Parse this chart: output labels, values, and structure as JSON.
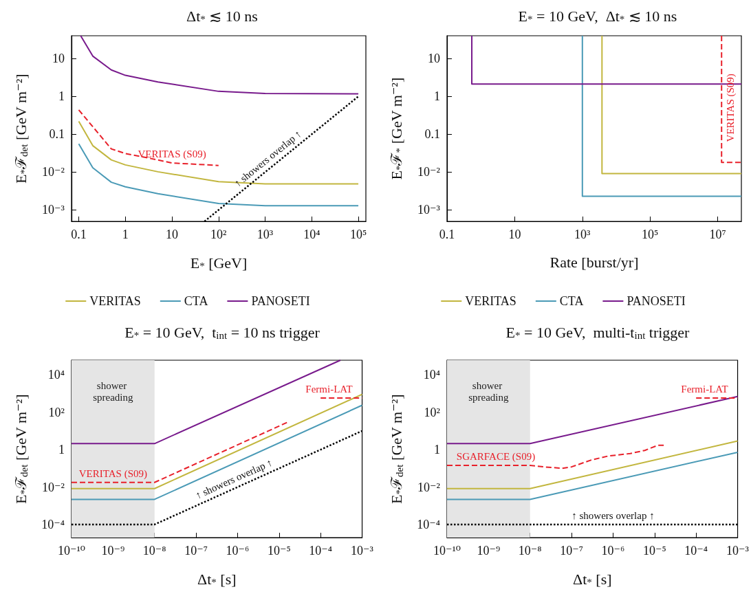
{
  "chart_data": [
    {
      "type": "line",
      "title": "Δt$_{*}$ ≲ 10 ns",
      "xlabel": "E$_{*}$ [GeV]",
      "ylabel": "E$_{*}$ℱ$_{det}$ [GeV m⁻²]",
      "log": "xy",
      "grid": false,
      "legend": "bottom",
      "marker": "none",
      "xlim": [
        0.07,
        145000
      ],
      "ylim": [
        0.0005,
        40
      ],
      "xticks": [
        0.1,
        1,
        10,
        {
          "value": 100,
          "label": "10²"
        },
        {
          "value": 1000,
          "label": "10³"
        },
        {
          "value": 10000,
          "label": "10⁴"
        },
        {
          "value": 100000,
          "label": "10⁵"
        }
      ],
      "yticks": [
        {
          "value": 0.001,
          "label": "10⁻³"
        },
        {
          "value": 0.01,
          "label": "10⁻²"
        },
        0.1,
        1,
        10
      ],
      "series": [
        {
          "name": "VERITAS",
          "color": "#c2b63e",
          "x": [
            0.1,
            0.2,
            0.5,
            1,
            5,
            100,
            1000,
            100000
          ],
          "values": [
            0.22,
            0.05,
            0.021,
            0.0155,
            0.0102,
            0.0056,
            0.0049,
            0.0049
          ]
        },
        {
          "name": "CTA",
          "color": "#4a9ab6",
          "x": [
            0.1,
            0.2,
            0.5,
            1,
            5,
            100,
            1000,
            100000
          ],
          "values": [
            0.056,
            0.013,
            0.0054,
            0.0041,
            0.0027,
            0.00148,
            0.0013,
            0.0013
          ]
        },
        {
          "name": "PANOSETI",
          "color": "#781a8c",
          "x": [
            0.11,
            0.2,
            0.5,
            1,
            5,
            100,
            1000,
            100000
          ],
          "values": [
            40,
            11.6,
            5.0,
            3.6,
            2.4,
            1.36,
            1.19,
            1.17
          ]
        },
        {
          "color": "#e8202a",
          "line_style": "dashed",
          "x": [
            0.1,
            0.5,
            1,
            5,
            10,
            100
          ],
          "values": [
            0.44,
            0.041,
            0.031,
            0.021,
            0.0174,
            0.015
          ]
        },
        {
          "color": "#000000",
          "line_style": "dotted",
          "x": [
            50,
            100000
          ],
          "values": [
            0.0005,
            1
          ]
        }
      ],
      "annotations": [
        {
          "text": "VERITAS (S09)",
          "x": 10,
          "y": 0.0174
        },
        {
          "text": "↑ showers overlap ↑",
          "x": 1500,
          "y": 0.015
        }
      ]
    },
    {
      "type": "line",
      "title": "E$_{*}$ = 10 GeV,  Δt$_{*}$ ≲ 10 ns",
      "xlabel": "Rate [burst/yr]",
      "ylabel": "E$_{*}$ℱ$_{*}$ [GeV m⁻²]",
      "log": "xy",
      "grid": false,
      "legend": "bottom",
      "marker": "none",
      "xlim": [
        0.1,
        50000000
      ],
      "ylim": [
        0.0005,
        40
      ],
      "xticks": [
        0.1,
        10,
        {
          "value": 1000,
          "label": "10³"
        },
        {
          "value": 100000,
          "label": "10⁵"
        },
        {
          "value": 10000000,
          "label": "10⁷"
        }
      ],
      "yticks": [
        {
          "value": 0.001,
          "label": "10⁻³"
        },
        {
          "value": 0.01,
          "label": "10⁻²"
        },
        0.1,
        1,
        10
      ],
      "series": [
        {
          "name": "VERITAS",
          "color": "#c2b63e",
          "x": [
            3800,
            3800,
            50000000
          ],
          "values": [
            40,
            0.0091,
            0.0091
          ]
        },
        {
          "name": "CTA",
          "color": "#4a9ab6",
          "x": [
            1000,
            1000,
            50000000
          ],
          "values": [
            40,
            0.0023,
            0.0023
          ]
        },
        {
          "name": "PANOSETI",
          "color": "#781a8c",
          "x": [
            0.54,
            0.54,
            50000000
          ],
          "values": [
            40,
            2.13,
            2.13
          ]
        },
        {
          "color": "#e8202a",
          "line_style": "dashed",
          "x": [
            13000000,
            13000000,
            50000000
          ],
          "values": [
            40,
            0.018,
            0.018
          ]
        }
      ],
      "annotations": [
        {
          "text": "VERITAS (S09)",
          "x": 13000000,
          "y": 0.5
        }
      ]
    },
    {
      "type": "line",
      "title": "E$_{*}$ = 10 GeV,  t$_{int}$ = 10 ns trigger",
      "xlabel": "Δt$_{*}$ [s]",
      "ylabel": "E$_{*}$ℱ$_{det}$ [GeV m⁻²]",
      "log": "xy",
      "grid": false,
      "marker": "none",
      "xlim": [
        1e-10,
        0.001
      ],
      "ylim": [
        2e-05,
        60000
      ],
      "xticks": [
        {
          "value": 1e-10,
          "label": "10⁻¹⁰"
        },
        {
          "value": 1e-09,
          "label": "10⁻⁹"
        },
        {
          "value": 1e-08,
          "label": "10⁻⁸"
        },
        {
          "value": 1e-07,
          "label": "10⁻⁷"
        },
        {
          "value": 1e-06,
          "label": "10⁻⁶"
        },
        {
          "value": 1e-05,
          "label": "10⁻⁵"
        },
        {
          "value": 0.0001,
          "label": "10⁻⁴"
        },
        {
          "value": 0.001,
          "label": "10⁻³"
        }
      ],
      "yticks": [
        {
          "value": 0.0001,
          "label": "10⁻⁴"
        },
        {
          "value": 0.001,
          "label": null
        },
        {
          "value": 0.01,
          "label": "10⁻²"
        },
        {
          "value": 0.1,
          "label": null
        },
        1,
        {
          "value": 10,
          "label": null
        },
        {
          "value": 100,
          "label": "10²"
        },
        {
          "value": 1000,
          "label": null
        },
        {
          "value": 10000,
          "label": "10⁴"
        }
      ],
      "bands": [
        {
          "axis": "x",
          "from": 1e-10,
          "to": 1e-08,
          "label": "shower spreading",
          "color": "#e5e5e5"
        }
      ],
      "series": [
        {
          "color": "#c2b63e",
          "x": [
            1e-10,
            1e-08,
            0.001
          ],
          "values": [
            0.0083,
            0.0083,
            900
          ]
        },
        {
          "color": "#4a9ab6",
          "x": [
            1e-10,
            1e-08,
            0.001
          ],
          "values": [
            0.0022,
            0.0022,
            235
          ]
        },
        {
          "color": "#781a8c",
          "x": [
            1e-10,
            1e-08,
            0.0003
          ],
          "values": [
            2.1,
            2.1,
            60000
          ]
        },
        {
          "color": "#e8202a",
          "line_style": "dashed",
          "x": [
            1e-10,
            1e-08,
            1.65e-05
          ],
          "values": [
            0.0177,
            0.0177,
            30
          ]
        },
        {
          "color": "#e8202a",
          "line_style": "dashed",
          "x": [
            0.0001,
            0.001
          ],
          "values": [
            575,
            575
          ]
        },
        {
          "color": "#000000",
          "line_style": "dotted",
          "x": [
            1e-10,
            1e-08,
            0.001
          ],
          "values": [
            0.0001,
            0.0001,
            10
          ]
        }
      ],
      "annotations": [
        {
          "text": "VERITAS (S09)",
          "x": 1e-09,
          "y": 0.0177
        },
        {
          "text": "Fermi-LAT",
          "x": 0.00016,
          "y": 575
        },
        {
          "text": "↑ showers overlap ↑",
          "x": 1e-06,
          "y": 0.01
        }
      ]
    },
    {
      "type": "line",
      "title": "E$_{*}$ = 10 GeV,  multi-t$_{int}$ trigger",
      "xlabel": "Δt$_{*}$ [s]",
      "ylabel": "E$_{*}$ℱ$_{det}$ [GeV m⁻²]",
      "log": "xy",
      "grid": false,
      "marker": "none",
      "xlim": [
        1e-10,
        0.001
      ],
      "ylim": [
        2e-05,
        60000
      ],
      "xticks": [
        {
          "value": 1e-10,
          "label": "10⁻¹⁰"
        },
        {
          "value": 1e-09,
          "label": "10⁻⁹"
        },
        {
          "value": 1e-08,
          "label": "10⁻⁸"
        },
        {
          "value": 1e-07,
          "label": "10⁻⁷"
        },
        {
          "value": 1e-06,
          "label": "10⁻⁶"
        },
        {
          "value": 1e-05,
          "label": "10⁻⁵"
        },
        {
          "value": 0.0001,
          "label": "10⁻⁴"
        },
        {
          "value": 0.001,
          "label": "10⁻³"
        }
      ],
      "yticks": [
        {
          "value": 0.0001,
          "label": "10⁻⁴"
        },
        {
          "value": 0.001,
          "label": null
        },
        {
          "value": 0.01,
          "label": "10⁻²"
        },
        {
          "value": 0.1,
          "label": null
        },
        1,
        {
          "value": 10,
          "label": null
        },
        {
          "value": 100,
          "label": "10²"
        },
        {
          "value": 1000,
          "label": null
        },
        {
          "value": 10000,
          "label": "10⁴"
        }
      ],
      "bands": [
        {
          "axis": "x",
          "from": 1e-10,
          "to": 1e-08,
          "label": "shower spreading",
          "color": "#e5e5e5"
        }
      ],
      "series": [
        {
          "color": "#c2b63e",
          "x": [
            1e-10,
            1e-08,
            0.001
          ],
          "values": [
            0.0083,
            0.0083,
            2.9
          ]
        },
        {
          "color": "#4a9ab6",
          "x": [
            1e-10,
            1e-08,
            0.001
          ],
          "values": [
            0.0022,
            0.0022,
            0.72
          ]
        },
        {
          "color": "#781a8c",
          "x": [
            1e-10,
            1e-08,
            0.001
          ],
          "values": [
            2.1,
            2.1,
            690
          ]
        },
        {
          "color": "#e8202a",
          "line_style": "dashed",
          "x": [
            1e-10,
            1e-08,
            2.1e-08,
            6e-08,
            1e-07,
            3e-07,
            7.8e-07,
            1.15e-06,
            2.6e-06,
            5.8e-06,
            1.2e-05,
            1.66e-05
          ],
          "values": [
            0.145,
            0.145,
            0.12,
            0.1,
            0.12,
            0.28,
            0.46,
            0.5,
            0.62,
            0.91,
            1.7,
            1.7
          ]
        },
        {
          "color": "#e8202a",
          "line_style": "dashed",
          "x": [
            0.0001,
            0.001
          ],
          "values": [
            575,
            575
          ]
        },
        {
          "color": "#000000",
          "line_style": "dotted",
          "x": [
            1e-10,
            0.001
          ],
          "values": [
            0.0001,
            0.0001
          ]
        }
      ],
      "annotations": [
        {
          "text": "SGARFACE (S09)",
          "x": 1.5e-09,
          "y": 0.145
        },
        {
          "text": "Fermi-LAT",
          "x": 0.00016,
          "y": 575
        },
        {
          "text": "↑ showers overlap ↑",
          "x": 1e-06,
          "y": 0.0001
        }
      ]
    }
  ]
}
